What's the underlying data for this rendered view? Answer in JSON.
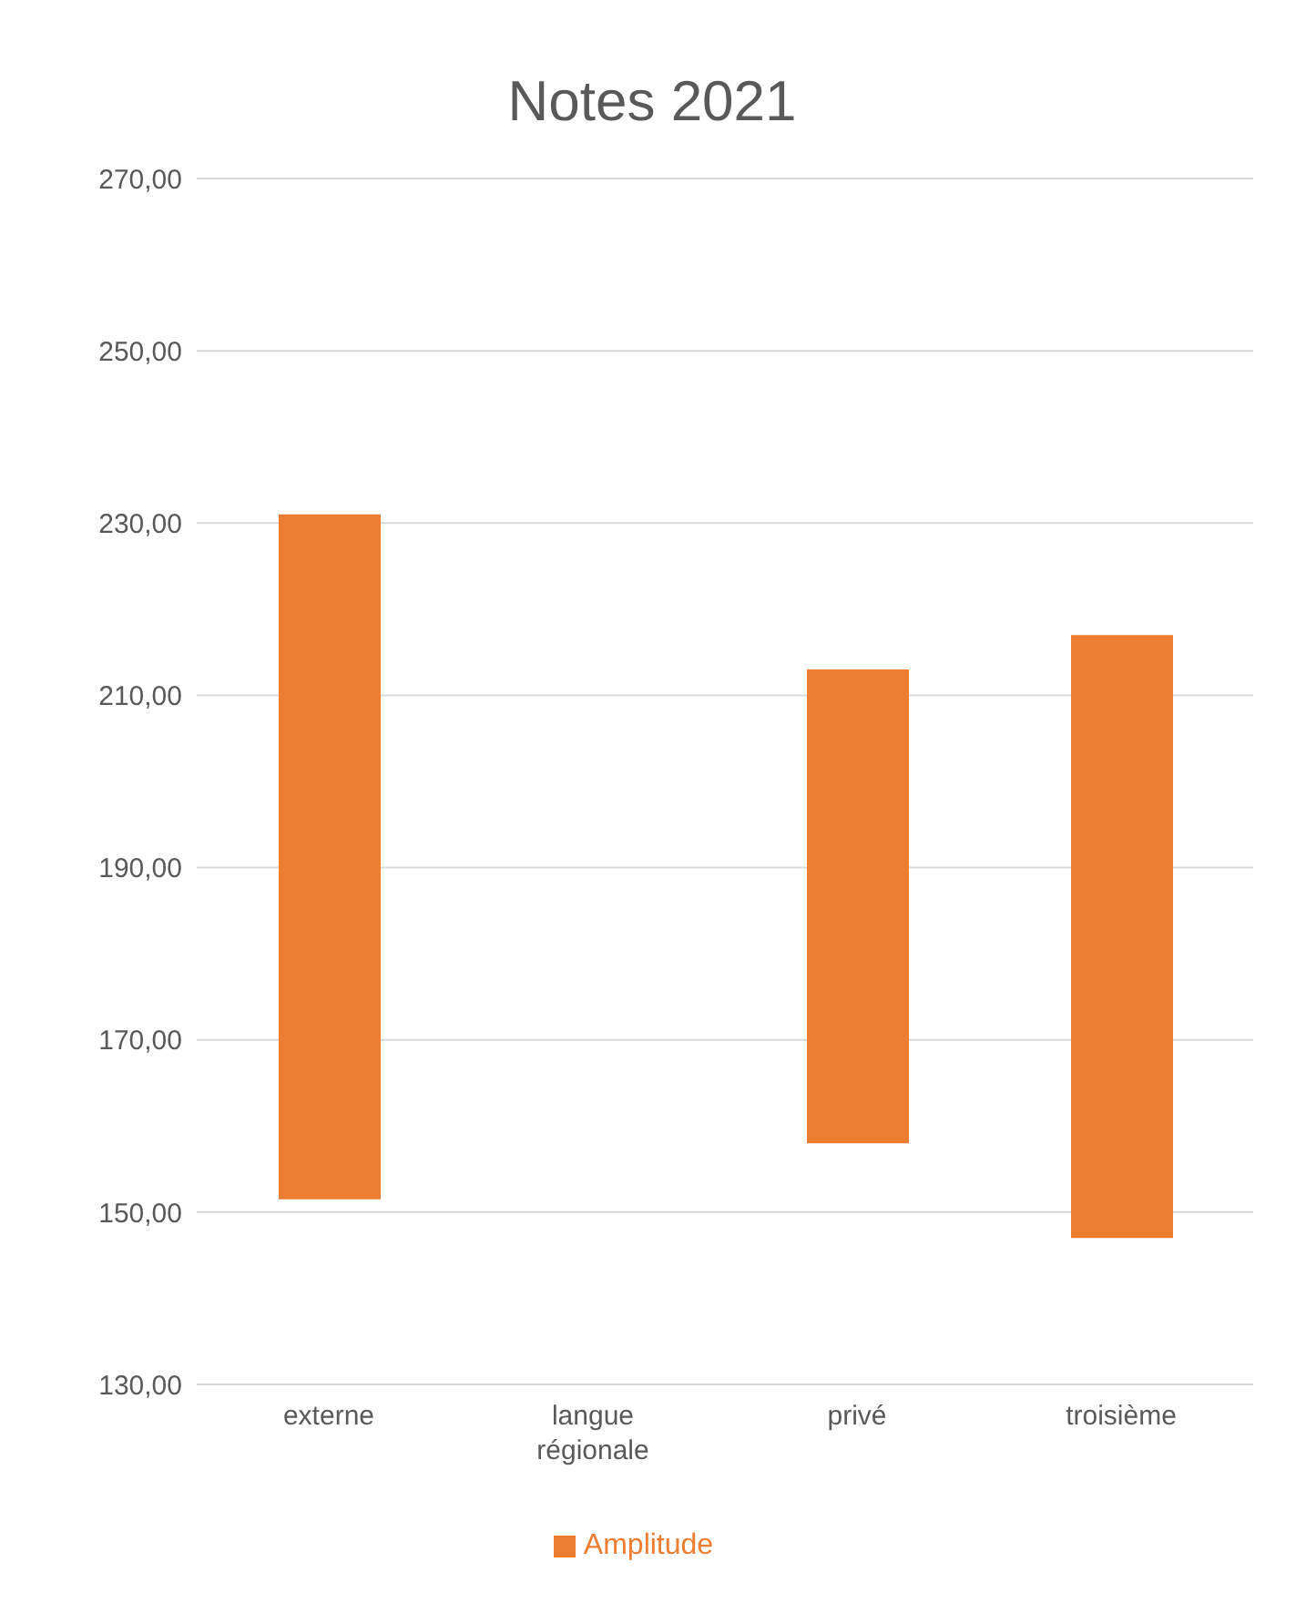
{
  "chart_data": {
    "type": "bar",
    "title": "Notes 2021",
    "categories": [
      "externe",
      "langue régionale",
      "privé",
      "troisième"
    ],
    "series": [
      {
        "name": "Amplitude",
        "color": "#ed7d31",
        "values": [
          79.5,
          null,
          55,
          70
        ],
        "base": [
          151.5,
          null,
          158,
          147
        ]
      }
    ],
    "ylim": [
      130,
      270
    ],
    "yticks": [
      {
        "value": 130,
        "label": "130,00"
      },
      {
        "value": 150,
        "label": "150,00"
      },
      {
        "value": 170,
        "label": "170,00"
      },
      {
        "value": 190,
        "label": "190,00"
      },
      {
        "value": 210,
        "label": "210,00"
      },
      {
        "value": 230,
        "label": "230,00"
      },
      {
        "value": 250,
        "label": "250,00"
      },
      {
        "value": 270,
        "label": "270,00"
      }
    ],
    "grid": "y",
    "legend": "bottom"
  }
}
